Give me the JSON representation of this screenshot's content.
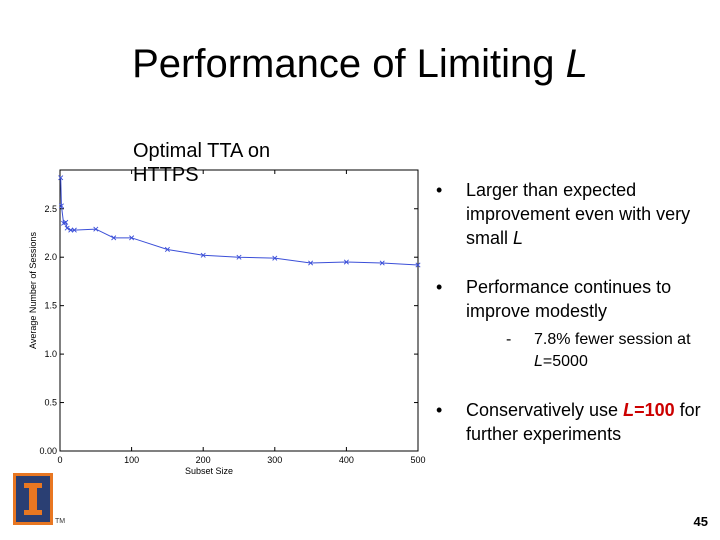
{
  "slide": {
    "title_prefix": "Performance of Limiting ",
    "title_var": "L",
    "page_number": "45",
    "logo_tm": "TM"
  },
  "bullets": {
    "b1_text": "Larger than expected improvement even with very small ",
    "b1_var": "L",
    "b2_text": "Performance continues to improve modestly",
    "sub_text": "7.8% fewer session at ",
    "sub_var": "L",
    "sub_value": "=5000",
    "b3_prefix": "Conservatively use ",
    "b3_highlight_var": "L",
    "b3_highlight_val": "=100",
    "b3_suffix": " for further experiments",
    "bullet_glyph": "•",
    "dash_glyph": "-"
  },
  "chart_data": {
    "type": "line",
    "title": "Optimal TTA on HTTPS",
    "xlabel": "Subset Size",
    "ylabel": "Average Number of Sessions",
    "xlim": [
      0,
      500
    ],
    "ylim": [
      0.0,
      2.9
    ],
    "xticks": [
      0,
      100,
      200,
      300,
      400,
      500
    ],
    "yticks": [
      0.0,
      0.5,
      1.0,
      1.5,
      2.0,
      2.5
    ],
    "ytick_labels": [
      "0.00",
      "0.5",
      "1.0",
      "1.5",
      "2.0",
      "2.5"
    ],
    "line_color": "#3b4fd8",
    "series": [
      {
        "x": [
          1,
          2,
          5,
          8,
          10,
          15,
          20,
          50,
          75,
          100,
          150,
          200,
          250,
          300,
          350,
          400,
          450,
          500
        ],
        "y": [
          2.82,
          2.53,
          2.35,
          2.36,
          2.3,
          2.28,
          2.28,
          2.29,
          2.2,
          2.2,
          2.08,
          2.02,
          2.0,
          1.99,
          1.94,
          1.95,
          1.94,
          1.92
        ]
      }
    ]
  }
}
